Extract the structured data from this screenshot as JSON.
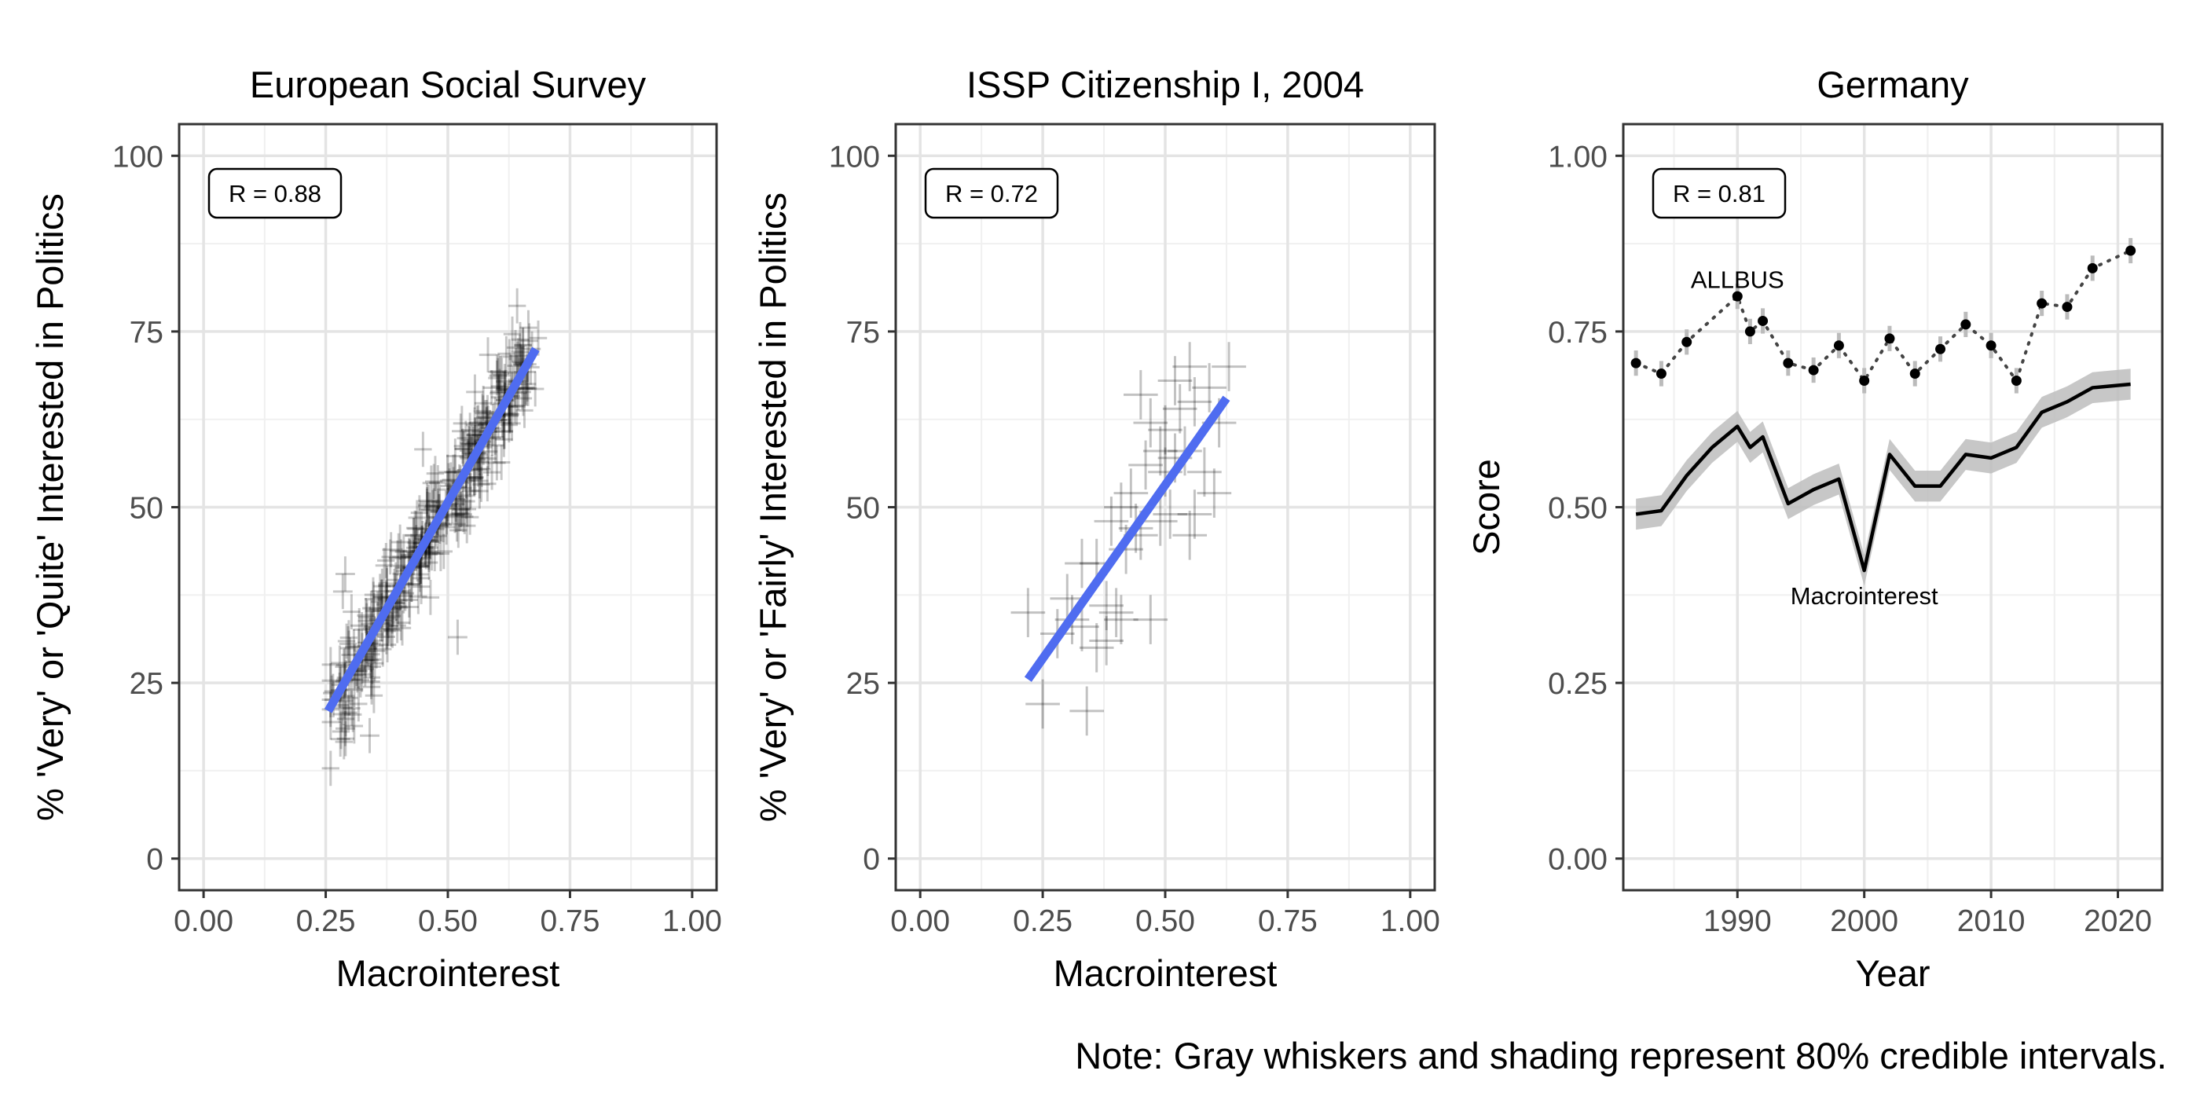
{
  "note": "Note: Gray whiskers and shading represent 80% credible intervals.",
  "chart_data": [
    {
      "type": "scatter",
      "title": "European Social Survey",
      "xlabel": "Macrointerest",
      "ylabel": "% 'Very' or 'Quite' Interested in Politics",
      "xlim": [
        -0.05,
        1.05
      ],
      "ylim": [
        -4.5,
        104.5
      ],
      "xticks": [
        0,
        0.25,
        0.5,
        0.75,
        1
      ],
      "xtick_labels": [
        "0.00",
        "0.25",
        "0.50",
        "0.75",
        "1.00"
      ],
      "yticks": [
        0,
        25,
        50,
        75,
        100
      ],
      "ytick_labels": [
        "0",
        "25",
        "50",
        "75",
        "100"
      ],
      "annotation": "R = 0.88",
      "fit_line": {
        "x": [
          0.255,
          0.68
        ],
        "y": [
          21,
          72.5
        ],
        "color": "#4f6cf0"
      },
      "points_description": "Dense cloud of roughly 400 country-round estimates along the fit line, x from about 0.25 to 0.68, with whisker crosses (80% intervals)",
      "point_color": "#000000"
    },
    {
      "type": "scatter",
      "title": "ISSP Citizenship I, 2004",
      "xlabel": "Macrointerest",
      "ylabel": "% 'Very' or 'Fairly' Interested in Politics",
      "xlim": [
        -0.05,
        1.05
      ],
      "ylim": [
        -4.5,
        104.5
      ],
      "xticks": [
        0,
        0.25,
        0.5,
        0.75,
        1
      ],
      "xtick_labels": [
        "0.00",
        "0.25",
        "0.50",
        "0.75",
        "1.00"
      ],
      "yticks": [
        0,
        25,
        50,
        75,
        100
      ],
      "ytick_labels": [
        "0",
        "25",
        "50",
        "75",
        "100"
      ],
      "annotation": "R = 0.72",
      "fit_line": {
        "x": [
          0.22,
          0.625
        ],
        "y": [
          25.5,
          65.5
        ],
        "color": "#4f6cf0"
      },
      "points": [
        [
          0.22,
          35
        ],
        [
          0.25,
          22
        ],
        [
          0.34,
          21
        ],
        [
          0.28,
          32
        ],
        [
          0.31,
          34
        ],
        [
          0.33,
          33
        ],
        [
          0.36,
          30
        ],
        [
          0.38,
          31
        ],
        [
          0.38,
          36
        ],
        [
          0.4,
          35
        ],
        [
          0.41,
          34
        ],
        [
          0.47,
          34
        ],
        [
          0.33,
          42
        ],
        [
          0.36,
          42
        ],
        [
          0.3,
          37
        ],
        [
          0.42,
          44
        ],
        [
          0.44,
          47
        ],
        [
          0.39,
          48
        ],
        [
          0.41,
          50
        ],
        [
          0.43,
          52
        ],
        [
          0.45,
          46
        ],
        [
          0.46,
          56
        ],
        [
          0.49,
          48
        ],
        [
          0.5,
          55
        ],
        [
          0.52,
          57
        ],
        [
          0.54,
          58
        ],
        [
          0.55,
          46
        ],
        [
          0.56,
          49
        ],
        [
          0.58,
          55
        ],
        [
          0.6,
          52
        ],
        [
          0.47,
          62
        ],
        [
          0.5,
          61
        ],
        [
          0.53,
          64
        ],
        [
          0.56,
          65
        ],
        [
          0.59,
          67
        ],
        [
          0.61,
          62
        ],
        [
          0.45,
          66
        ],
        [
          0.52,
          68
        ],
        [
          0.55,
          70
        ],
        [
          0.63,
          70
        ],
        [
          0.49,
          58
        ],
        [
          0.51,
          49
        ]
      ],
      "point_color": "#000000"
    },
    {
      "type": "line",
      "title": "Germany",
      "xlabel": "Year",
      "ylabel": "Score",
      "xlim": [
        1981,
        2023.5
      ],
      "ylim": [
        -0.045,
        1.045
      ],
      "xticks": [
        1990,
        2000,
        2010,
        2020
      ],
      "xtick_labels": [
        "1990",
        "2000",
        "2010",
        "2020"
      ],
      "yticks": [
        0,
        0.25,
        0.5,
        0.75,
        1
      ],
      "ytick_labels": [
        "0.00",
        "0.25",
        "0.50",
        "0.75",
        "1.00"
      ],
      "annotation": "R = 0.81",
      "series": [
        {
          "name": "ALLBUS",
          "style": "dotted-points",
          "x": [
            1982,
            1984,
            1986,
            1990,
            1991,
            1992,
            1994,
            1996,
            1998,
            2000,
            2002,
            2004,
            2006,
            2008,
            2010,
            2012,
            2014,
            2016,
            2018,
            2021
          ],
          "y": [
            0.705,
            0.69,
            0.735,
            0.8,
            0.75,
            0.765,
            0.705,
            0.695,
            0.73,
            0.68,
            0.74,
            0.69,
            0.725,
            0.76,
            0.73,
            0.68,
            0.79,
            0.785,
            0.84,
            0.865
          ]
        },
        {
          "name": "Macrointerest",
          "style": "solid-line-with-band",
          "x": [
            1982,
            1984,
            1986,
            1988,
            1990,
            1991,
            1992,
            1994,
            1996,
            1998,
            2000,
            2002,
            2004,
            2006,
            2008,
            2010,
            2012,
            2014,
            2016,
            2018,
            2021
          ],
          "y": [
            0.49,
            0.495,
            0.545,
            0.585,
            0.615,
            0.585,
            0.6,
            0.505,
            0.525,
            0.54,
            0.41,
            0.575,
            0.53,
            0.53,
            0.575,
            0.57,
            0.585,
            0.635,
            0.65,
            0.67,
            0.675
          ],
          "band_halfwidth": 0.022
        }
      ],
      "point_color": "#000000",
      "band_color": "#bdbdbd"
    }
  ]
}
